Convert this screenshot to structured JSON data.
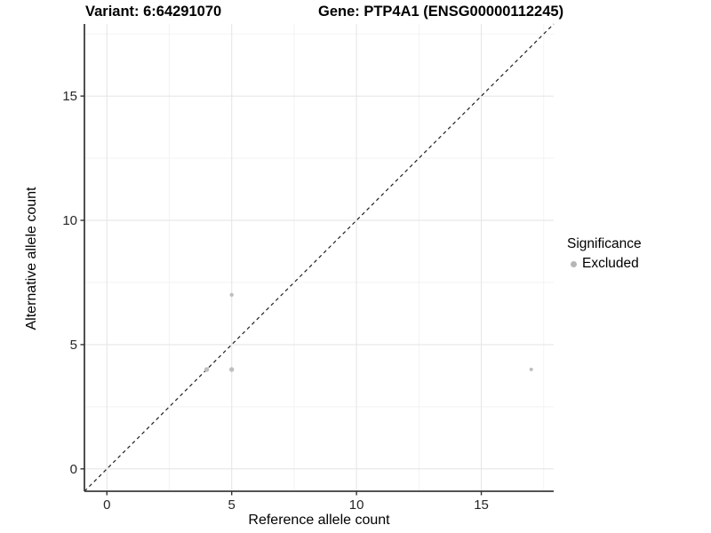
{
  "header": {
    "variant_title": "Variant: 6:64291070",
    "gene_title": "Gene: PTP4A1 (ENSG00000112245)"
  },
  "legend": {
    "title": "Significance",
    "items": [
      {
        "label": "Excluded",
        "marker_color": "#b6b6b6"
      }
    ]
  },
  "chart_data": {
    "type": "scatter",
    "xlabel": "Reference allele count",
    "ylabel": "Alternative allele count",
    "xlim": [
      -0.9,
      17.9
    ],
    "ylim": [
      -0.9,
      17.9
    ],
    "x_major_ticks": [
      0,
      5,
      10,
      15
    ],
    "y_major_ticks": [
      0,
      5,
      10,
      15
    ],
    "x_minor_gridlines": [
      2.5,
      7.5,
      12.5,
      17.5
    ],
    "y_minor_gridlines": [
      2.5,
      7.5,
      12.5,
      17.5
    ],
    "grid": "major+minor",
    "legend_position": "right",
    "series": [
      {
        "name": "Excluded",
        "color": "#bfbfbf",
        "points": [
          {
            "x": 4,
            "y": 4,
            "r": 2.7
          },
          {
            "x": 5,
            "y": 4,
            "r": 2.7
          },
          {
            "x": 5,
            "y": 7,
            "r": 2.2
          },
          {
            "x": 17,
            "y": 4,
            "r": 2.0
          }
        ]
      }
    ],
    "reference_line": {
      "slope": 1,
      "intercept": 0,
      "style": "dashed",
      "color": "#1f1f1f"
    }
  },
  "style": {
    "major_grid_color": "#e6e6e6",
    "minor_grid_color": "#f2f2f2",
    "axis_line_color": "#3c3c3c",
    "tick_color": "#333333",
    "tick_label_color": "#262626"
  }
}
